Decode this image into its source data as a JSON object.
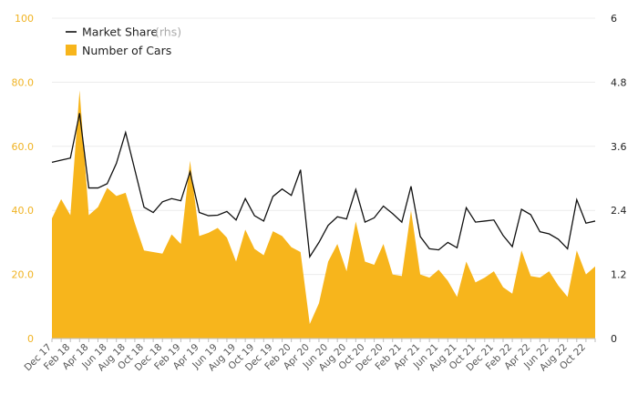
{
  "chart_data": {
    "type": "area",
    "x": [
      "Dec 17",
      "Jan 18",
      "Feb 18",
      "Mar 18",
      "Apr 18",
      "May 18",
      "Jun 18",
      "Jul 18",
      "Aug 18",
      "Sep 18",
      "Oct 18",
      "Nov 18",
      "Dec 18",
      "Jan 19",
      "Feb 19",
      "Mar 19",
      "Apr 19",
      "May 19",
      "Jun 19",
      "Jul 19",
      "Aug 19",
      "Sep 19",
      "Oct 19",
      "Nov 19",
      "Dec 19",
      "Jan 20",
      "Feb 20",
      "Mar 20",
      "Apr 20",
      "May 20",
      "Jun 20",
      "Jul 20",
      "Aug 20",
      "Sep 20",
      "Oct 20",
      "Nov 20",
      "Dec 20",
      "Jan 21",
      "Feb 21",
      "Mar 21",
      "Apr 21",
      "May 21",
      "Jun 21",
      "Jul 21",
      "Aug 21",
      "Sep 21",
      "Oct 21",
      "Nov 21",
      "Dec 21",
      "Jan 22",
      "Feb 22",
      "Mar 22",
      "Apr 22",
      "May 22",
      "Jun 22",
      "Jul 22",
      "Aug 22",
      "Sep 22",
      "Oct 22",
      "Nov 22"
    ],
    "x_tick_labels": [
      "Dec 17",
      "Feb 18",
      "Apr 18",
      "Jun 18",
      "Aug 18",
      "Oct 18",
      "Dec 18",
      "Feb 19",
      "Apr 19",
      "Jun 19",
      "Aug 19",
      "Oct 19",
      "Dec 19",
      "Feb 20",
      "Apr 20",
      "Jun 20",
      "Aug 20",
      "Oct 20",
      "Dec 20",
      "Feb 21",
      "Apr 21",
      "Jun 21",
      "Aug 21",
      "Oct 21",
      "Dec 21",
      "Feb 22",
      "Apr 22",
      "Jun 22",
      "Aug 22",
      "Oct 22"
    ],
    "series": [
      {
        "name": "Number of Cars",
        "axis": "left",
        "color": "#f7b51c",
        "values": [
          37.5,
          43.5,
          38.5,
          77.5,
          38.5,
          41,
          47,
          44.5,
          45.5,
          36,
          27.5,
          27,
          26.5,
          32.5,
          29.5,
          55.5,
          32,
          33,
          34.5,
          31.5,
          24,
          34,
          28,
          26,
          33.5,
          32,
          28.5,
          27,
          4.5,
          11,
          24,
          29.5,
          21,
          36.5,
          24,
          23,
          29.5,
          20,
          19.5,
          40,
          20,
          19,
          21.5,
          18,
          13,
          24,
          17.5,
          19,
          21,
          16,
          14,
          27.5,
          19.5,
          19,
          21,
          16.5,
          13,
          27.5,
          20,
          22.5
        ]
      },
      {
        "name": "Market Share (rhs)",
        "axis": "right",
        "color": "#111111",
        "values": [
          3.3,
          3.34,
          3.38,
          4.22,
          2.82,
          2.82,
          2.9,
          3.28,
          3.86,
          3.16,
          2.46,
          2.36,
          2.56,
          2.62,
          2.58,
          3.12,
          2.36,
          2.3,
          2.31,
          2.38,
          2.22,
          2.62,
          2.3,
          2.2,
          2.66,
          2.8,
          2.68,
          3.16,
          1.53,
          1.8,
          2.12,
          2.28,
          2.24,
          2.79,
          2.18,
          2.26,
          2.48,
          2.34,
          2.18,
          2.85,
          1.91,
          1.68,
          1.66,
          1.8,
          1.7,
          2.45,
          2.18,
          2.2,
          2.22,
          1.93,
          1.72,
          2.42,
          2.32,
          2.0,
          1.96,
          1.86,
          1.68,
          2.6,
          2.16,
          2.2
        ]
      }
    ],
    "left_axis": {
      "ticks": [
        "0",
        "20.0",
        "40.0",
        "60.0",
        "80.0",
        "100"
      ],
      "ylim": [
        0,
        100
      ],
      "color": "#f0b323"
    },
    "right_axis": {
      "ticks": [
        "0",
        "1.2",
        "2.4",
        "3.6",
        "4.8",
        "6"
      ],
      "ylim": [
        0,
        6
      ],
      "color": "#222222"
    },
    "legend": {
      "placement": "top-left",
      "line_label": "Market Share",
      "line_label_suffix": "(rhs)",
      "area_label": "Number of Cars"
    },
    "grid": "horizontal"
  }
}
